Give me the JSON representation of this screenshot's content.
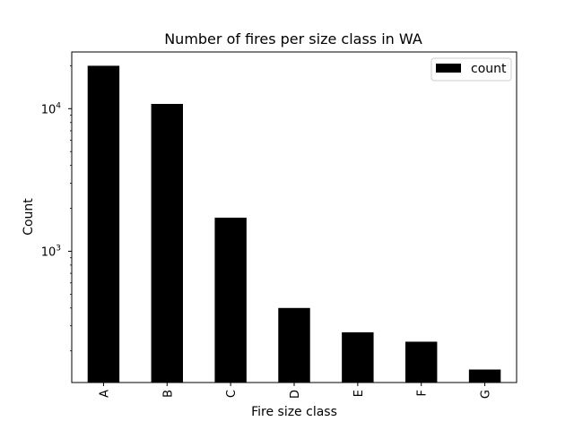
{
  "chart_data": {
    "type": "bar",
    "title": "Number of fires per size class in WA",
    "xlabel": "Fire size class",
    "ylabel": "Count",
    "yscale": "log",
    "ylim": [
      120,
      25000
    ],
    "categories": [
      "A",
      "B",
      "C",
      "D",
      "E",
      "F",
      "G"
    ],
    "series": [
      {
        "name": "count",
        "values": [
          20000,
          10800,
          1720,
          400,
          270,
          232,
          148
        ]
      }
    ],
    "yticks": [
      {
        "value": 10000,
        "base": "10",
        "exp": "4"
      },
      {
        "value": 1000,
        "base": "10",
        "exp": "3"
      }
    ],
    "grid": false,
    "legend": "top-right",
    "colors": {
      "bar": "#000000",
      "axes": "#000000",
      "background": "#ffffff"
    }
  }
}
